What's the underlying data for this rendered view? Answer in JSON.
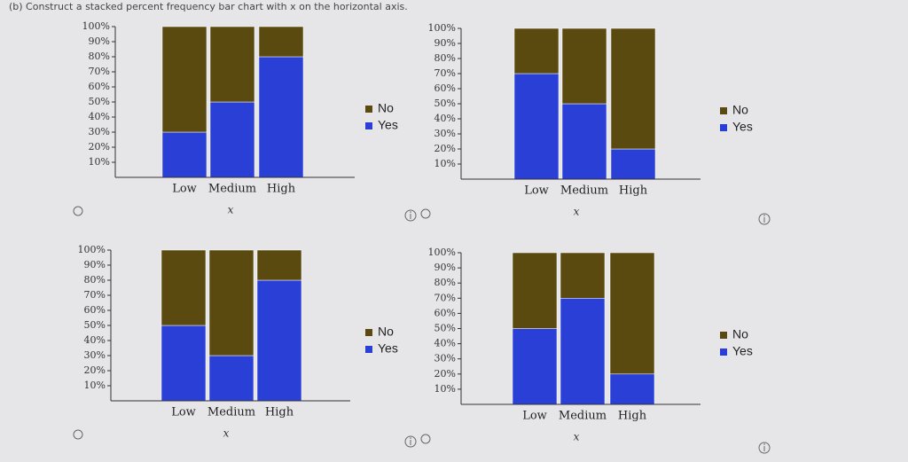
{
  "question": "(b) Construct a stacked percent frequency bar chart with x on the horizontal axis.",
  "chart_data": [
    {
      "type": "bar",
      "stacked": true,
      "x_label": "x",
      "categories": [
        "Low",
        "Medium",
        "High"
      ],
      "series": [
        {
          "name": "Yes",
          "color": "#2a3fd6",
          "values": [
            30,
            50,
            80
          ]
        },
        {
          "name": "No",
          "color": "#5a4a10",
          "values": [
            70,
            50,
            20
          ]
        }
      ],
      "ylim": [
        0,
        100
      ],
      "yticks": [
        {
          "value": 10,
          "label": "10%"
        },
        {
          "value": 20,
          "label": "20%"
        },
        {
          "value": 30,
          "label": "30%"
        },
        {
          "value": 40,
          "label": "40%"
        },
        {
          "value": 50,
          "label": "50%"
        },
        {
          "value": 60,
          "label": "60%"
        },
        {
          "value": 70,
          "label": "70%"
        },
        {
          "value": 80,
          "label": "80%"
        },
        {
          "value": 90,
          "label": "90%"
        },
        {
          "value": 100,
          "label": "100%"
        }
      ]
    },
    {
      "type": "bar",
      "stacked": true,
      "x_label": "x",
      "categories": [
        "Low",
        "Medium",
        "High"
      ],
      "series": [
        {
          "name": "Yes",
          "color": "#2a3fd6",
          "values": [
            70,
            50,
            20
          ]
        },
        {
          "name": "No",
          "color": "#5a4a10",
          "values": [
            30,
            50,
            80
          ]
        }
      ],
      "ylim": [
        0,
        100
      ],
      "yticks": [
        {
          "value": 10,
          "label": "10%"
        },
        {
          "value": 20,
          "label": "20%"
        },
        {
          "value": 30,
          "label": "30%"
        },
        {
          "value": 40,
          "label": "40%"
        },
        {
          "value": 50,
          "label": "50%"
        },
        {
          "value": 60,
          "label": "60%"
        },
        {
          "value": 70,
          "label": "70%"
        },
        {
          "value": 80,
          "label": "80%"
        },
        {
          "value": 90,
          "label": "90%"
        },
        {
          "value": 100,
          "label": "100%"
        }
      ]
    },
    {
      "type": "bar",
      "stacked": true,
      "x_label": "x",
      "categories": [
        "Low",
        "Medium",
        "High"
      ],
      "series": [
        {
          "name": "Yes",
          "color": "#2a3fd6",
          "values": [
            50,
            30,
            80
          ]
        },
        {
          "name": "No",
          "color": "#5a4a10",
          "values": [
            50,
            70,
            20
          ]
        }
      ],
      "ylim": [
        0,
        100
      ],
      "yticks": [
        {
          "value": 10,
          "label": "10%"
        },
        {
          "value": 20,
          "label": "20%"
        },
        {
          "value": 30,
          "label": "30%"
        },
        {
          "value": 40,
          "label": "40%"
        },
        {
          "value": 50,
          "label": "50%"
        },
        {
          "value": 60,
          "label": "60%"
        },
        {
          "value": 70,
          "label": "70%"
        },
        {
          "value": 80,
          "label": "80%"
        },
        {
          "value": 90,
          "label": "90%"
        },
        {
          "value": 100,
          "label": "100%"
        }
      ]
    },
    {
      "type": "bar",
      "stacked": true,
      "x_label": "x",
      "categories": [
        "Low",
        "Medium",
        "High"
      ],
      "series": [
        {
          "name": "Yes",
          "color": "#2a3fd6",
          "values": [
            50,
            70,
            20
          ]
        },
        {
          "name": "No",
          "color": "#5a4a10",
          "values": [
            50,
            30,
            80
          ]
        }
      ],
      "ylim": [
        0,
        100
      ],
      "yticks": [
        {
          "value": 10,
          "label": "10%"
        },
        {
          "value": 20,
          "label": "20%"
        },
        {
          "value": 30,
          "label": "30%"
        },
        {
          "value": 40,
          "label": "40%"
        },
        {
          "value": 50,
          "label": "50%"
        },
        {
          "value": 60,
          "label": "60%"
        },
        {
          "value": 70,
          "label": "70%"
        },
        {
          "value": 80,
          "label": "80%"
        },
        {
          "value": 90,
          "label": "90%"
        },
        {
          "value": 100,
          "label": "100%"
        }
      ]
    }
  ]
}
